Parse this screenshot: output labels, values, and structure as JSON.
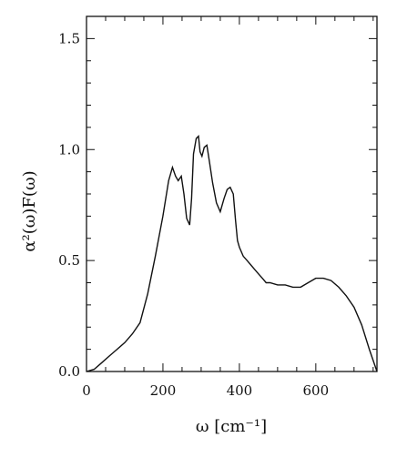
{
  "chart_data": {
    "type": "line",
    "title": "",
    "xlabel": "ω [cm⁻¹]",
    "ylabel": "α²(ω)F(ω)",
    "xlim": [
      0,
      760
    ],
    "ylim": [
      0,
      1.6
    ],
    "grid": false,
    "x_ticks": [
      "0",
      "200",
      "400",
      "600"
    ],
    "y_ticks": [
      "0.0",
      "0.5",
      "1.0",
      "1.5"
    ],
    "x_tick_values": [
      0,
      200,
      400,
      600
    ],
    "y_tick_values": [
      0.0,
      0.5,
      1.0,
      1.5
    ],
    "series": [
      {
        "x": [
          0,
          20,
          40,
          60,
          80,
          100,
          120,
          140,
          160,
          180,
          200,
          215,
          225,
          233,
          240,
          248,
          255,
          262,
          270,
          275,
          280,
          287,
          293,
          297,
          302,
          308,
          315,
          322,
          330,
          340,
          350,
          360,
          368,
          376,
          384,
          390,
          395,
          400,
          410,
          420,
          430,
          440,
          450,
          460,
          470,
          480,
          500,
          520,
          540,
          560,
          580,
          600,
          620,
          640,
          660,
          680,
          700,
          720,
          740,
          760
        ],
        "y": [
          0.0,
          0.01,
          0.04,
          0.07,
          0.1,
          0.13,
          0.17,
          0.22,
          0.35,
          0.52,
          0.7,
          0.86,
          0.92,
          0.88,
          0.86,
          0.88,
          0.8,
          0.69,
          0.66,
          0.78,
          0.98,
          1.05,
          1.06,
          0.99,
          0.97,
          1.01,
          1.02,
          0.94,
          0.85,
          0.76,
          0.72,
          0.78,
          0.82,
          0.83,
          0.8,
          0.68,
          0.59,
          0.56,
          0.52,
          0.5,
          0.48,
          0.46,
          0.44,
          0.42,
          0.4,
          0.4,
          0.39,
          0.39,
          0.38,
          0.38,
          0.4,
          0.42,
          0.42,
          0.41,
          0.38,
          0.34,
          0.29,
          0.21,
          0.1,
          0.0
        ]
      }
    ]
  }
}
